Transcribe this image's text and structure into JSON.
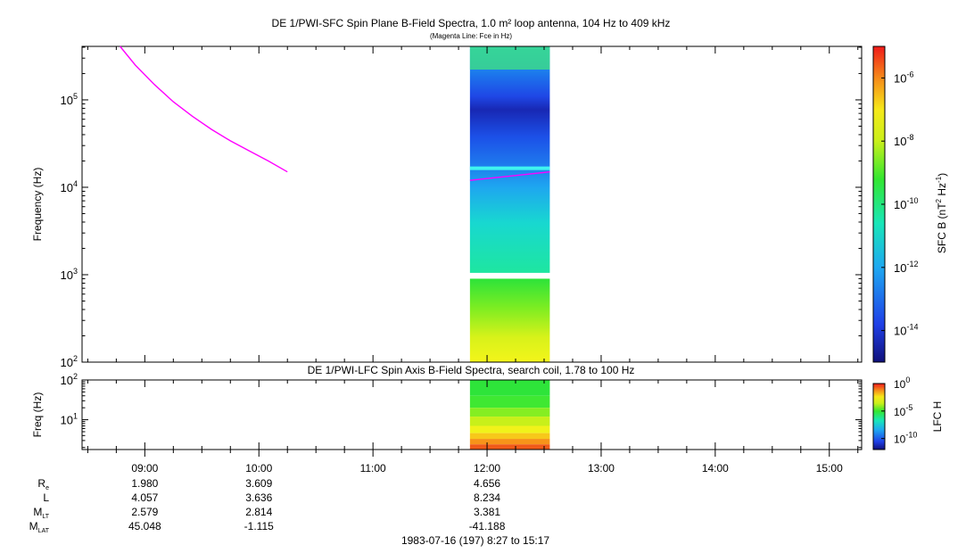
{
  "chart_data": [
    {
      "type": "heatmap",
      "title": "DE 1/PWI-SFC  Spin Plane B-Field Spectra, 1.0 m² loop antenna, 104 Hz to 409 kHz",
      "subtitle": "(Magenta Line: Fce in Hz)",
      "ylabel": "Frequency (Hz)",
      "y_scale": "log",
      "ylim": [
        100,
        409000
      ],
      "y_ticks": [
        {
          "value": 100,
          "base": "10",
          "exp": "2"
        },
        {
          "value": 1000,
          "base": "10",
          "exp": "3"
        },
        {
          "value": 10000,
          "base": "10",
          "exp": "4"
        },
        {
          "value": 100000,
          "base": "10",
          "exp": "5"
        }
      ],
      "data_window": [
        "11:51",
        "12:33"
      ],
      "data_gap_hz": [
        900,
        1050
      ],
      "fce_line": {
        "name": "Fce in Hz",
        "color": "#ff00ff",
        "x": [
          "08:47",
          "08:55",
          "09:05",
          "09:15",
          "09:25",
          "09:35",
          "09:45",
          "09:55",
          "10:05",
          "10:15",
          "11:51",
          "12:33"
        ],
        "y": [
          409000,
          250000,
          150000,
          95000,
          65000,
          46000,
          34000,
          26000,
          20000,
          15000,
          12000,
          15000
        ]
      },
      "colorbar": {
        "label_base": "SFC B (nT",
        "label_sup1": "2",
        "label_mid": " Hz",
        "label_sup2": "-1",
        "label_end": ")",
        "scale": "log",
        "range": [
          "1e-15",
          "1e-5"
        ],
        "ticks": [
          {
            "base": "10",
            "exp": "-6",
            "log": -6
          },
          {
            "base": "10",
            "exp": "-8",
            "log": -8
          },
          {
            "base": "10",
            "exp": "-10",
            "log": -10
          },
          {
            "base": "10",
            "exp": "-12",
            "log": -12
          },
          {
            "base": "10",
            "exp": "-14",
            "log": -14
          }
        ]
      }
    },
    {
      "type": "heatmap",
      "title": "DE 1/PWI-LFC  Spin Axis B-Field Spectra, search coil, 1.78 to 100 Hz",
      "ylabel": "Freq (Hz)",
      "y_scale": "log",
      "ylim": [
        1.78,
        100
      ],
      "y_ticks": [
        {
          "value": 10,
          "base": "10",
          "exp": "1"
        },
        {
          "value": 100,
          "base": "10",
          "exp": "2"
        }
      ],
      "data_window": [
        "11:51",
        "12:33"
      ],
      "colorbar": {
        "label": "LFC H",
        "scale": "log",
        "range": [
          "1e-12",
          "1e0"
        ],
        "ticks": [
          {
            "base": "10",
            "exp": "0",
            "log": 0
          },
          {
            "base": "10",
            "exp": "-5",
            "log": -5
          },
          {
            "base": "10",
            "exp": "-10",
            "log": -10
          }
        ]
      }
    }
  ],
  "x_axis": {
    "range": [
      "08:27",
      "15:17"
    ],
    "tick_labels": [
      "09:00",
      "10:00",
      "11:00",
      "12:00",
      "13:00",
      "14:00",
      "15:00"
    ]
  },
  "ephemeris": {
    "rows": [
      {
        "label": "R",
        "sub": "e",
        "values": [
          "1.980",
          "3.609",
          "4.656"
        ]
      },
      {
        "label": "L",
        "sub": "",
        "values": [
          "4.057",
          "3.636",
          "8.234"
        ]
      },
      {
        "label": "M",
        "sub": "LT",
        "values": [
          "2.579",
          "2.814",
          "3.381"
        ]
      },
      {
        "label": "M",
        "sub": "LAT",
        "values": [
          "45.048",
          "-1.115",
          "-41.188"
        ]
      }
    ],
    "value_times": [
      "09:00",
      "10:00",
      "12:00"
    ]
  },
  "footer": "1983-07-16 (197) 8:27 to 15:17"
}
